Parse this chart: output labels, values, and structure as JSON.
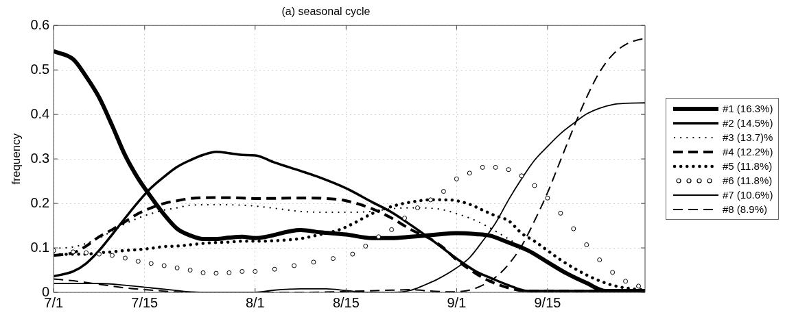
{
  "chart_data": {
    "type": "line",
    "title": "(a) seasonal cycle",
    "ylabel": "frequency",
    "xlim": [
      "--07-01",
      "--09-30"
    ],
    "ylim": [
      0,
      0.6
    ],
    "xticks": [
      {
        "value": "--07-01",
        "label": "7/1"
      },
      {
        "value": "--07-15",
        "label": "7/15"
      },
      {
        "value": "--08-01",
        "label": "8/1"
      },
      {
        "value": "--08-15",
        "label": "8/15"
      },
      {
        "value": "--09-01",
        "label": "9/1"
      },
      {
        "value": "--09-15",
        "label": "9/15"
      }
    ],
    "yticks": [
      0,
      0.1,
      0.2,
      0.3,
      0.4,
      0.5,
      0.6
    ],
    "grid": true,
    "legend": "right",
    "series": [
      {
        "name": "#1 (16.3%)",
        "color": "#000000",
        "type": "line",
        "line_style": "solid",
        "x": [
          "--07-01",
          "--07-04",
          "--07-06",
          "--07-08",
          "--07-10",
          "--07-12",
          "--07-14",
          "--07-16",
          "--07-18",
          "--07-20",
          "--07-22",
          "--07-24",
          "--07-26",
          "--07-28",
          "--07-30",
          "--08-01",
          "--08-08",
          "--08-11",
          "--08-15",
          "--08-19",
          "--08-22",
          "--08-25",
          "--08-29",
          "--09-01",
          "--09-04",
          "--09-06",
          "--09-09",
          "--09-12",
          "--09-15",
          "--09-18",
          "--09-21",
          "--09-24",
          "--09-27",
          "--09-30"
        ],
        "values": [
          0.542,
          0.524,
          0.485,
          0.438,
          0.375,
          0.308,
          0.256,
          0.214,
          0.175,
          0.143,
          0.128,
          0.12,
          0.12,
          0.123,
          0.125,
          0.122,
          0.14,
          0.135,
          0.13,
          0.122,
          0.122,
          0.125,
          0.13,
          0.133,
          0.131,
          0.128,
          0.112,
          0.094,
          0.068,
          0.042,
          0.021,
          0.003,
          0.003,
          0.003
        ]
      },
      {
        "name": "#2 (14.5%)",
        "color": "#000000",
        "type": "line",
        "line_style": "solid",
        "x": [
          "--07-01",
          "--07-04",
          "--07-06",
          "--07-08",
          "--07-10",
          "--07-12",
          "--07-14",
          "--07-16",
          "--07-18",
          "--07-20",
          "--07-22",
          "--07-24",
          "--07-26",
          "--07-28",
          "--07-30",
          "--08-01",
          "--08-04",
          "--08-08",
          "--08-11",
          "--08-15",
          "--08-19",
          "--08-22",
          "--08-25",
          "--08-28",
          "--08-30",
          "--09-01",
          "--09-04",
          "--09-06",
          "--09-09",
          "--09-12",
          "--09-30"
        ],
        "values": [
          0.036,
          0.047,
          0.065,
          0.094,
          0.13,
          0.167,
          0.203,
          0.235,
          0.26,
          0.282,
          0.297,
          0.309,
          0.316,
          0.313,
          0.309,
          0.308,
          0.292,
          0.273,
          0.258,
          0.234,
          0.203,
          0.18,
          0.151,
          0.12,
          0.098,
          0.076,
          0.047,
          0.034,
          0.016,
          0.003,
          0.003
        ]
      },
      {
        "name": "#3 (13.7)%",
        "color": "#000000",
        "type": "line",
        "line_style": "dotted",
        "x": [
          "--07-01",
          "--07-04",
          "--07-06",
          "--07-08",
          "--07-10",
          "--07-12",
          "--07-14",
          "--07-16",
          "--07-18",
          "--07-20",
          "--07-22",
          "--07-26",
          "--07-30",
          "--08-01",
          "--08-04",
          "--08-08",
          "--08-12",
          "--08-15",
          "--08-19",
          "--08-22",
          "--08-25",
          "--08-29",
          "--09-01",
          "--09-04",
          "--09-06",
          "--09-09",
          "--09-12",
          "--09-15",
          "--09-18",
          "--09-21",
          "--09-24",
          "--09-30"
        ],
        "values": [
          0.099,
          0.102,
          0.11,
          0.122,
          0.138,
          0.154,
          0.167,
          0.177,
          0.185,
          0.19,
          0.196,
          0.197,
          0.196,
          0.194,
          0.189,
          0.182,
          0.18,
          0.18,
          0.182,
          0.188,
          0.19,
          0.188,
          0.177,
          0.161,
          0.146,
          0.12,
          0.094,
          0.068,
          0.042,
          0.021,
          0.005,
          0.003
        ]
      },
      {
        "name": "#4 (12.2%)",
        "color": "#000000",
        "type": "line",
        "line_style": "dashed",
        "x": [
          "--07-01",
          "--07-04",
          "--07-06",
          "--07-08",
          "--07-10",
          "--07-12",
          "--07-14",
          "--07-16",
          "--07-18",
          "--07-20",
          "--07-22",
          "--07-26",
          "--07-30",
          "--08-01",
          "--08-08",
          "--08-12",
          "--08-15",
          "--08-19",
          "--08-22",
          "--08-25",
          "--08-28",
          "--08-30",
          "--09-01",
          "--09-04",
          "--09-06",
          "--09-09",
          "--09-12",
          "--09-30"
        ],
        "values": [
          0.083,
          0.089,
          0.104,
          0.125,
          0.141,
          0.159,
          0.177,
          0.19,
          0.2,
          0.206,
          0.211,
          0.213,
          0.212,
          0.211,
          0.212,
          0.211,
          0.206,
          0.188,
          0.167,
          0.141,
          0.12,
          0.1,
          0.073,
          0.042,
          0.026,
          0.01,
          0.003,
          0.003
        ]
      },
      {
        "name": "#5 (11.8%)",
        "color": "#000000",
        "type": "line",
        "line_style": "dotted",
        "x": [
          "--07-01",
          "--07-04",
          "--07-06",
          "--07-08",
          "--07-10",
          "--07-12",
          "--07-14",
          "--07-16",
          "--07-18",
          "--07-20",
          "--07-22",
          "--07-24",
          "--07-26",
          "--07-28",
          "--07-30",
          "--08-01",
          "--08-04",
          "--08-08",
          "--08-11",
          "--08-14",
          "--08-16",
          "--08-19",
          "--08-22",
          "--08-25",
          "--08-28",
          "--08-30",
          "--09-01",
          "--09-03",
          "--09-05",
          "--09-07",
          "--09-09",
          "--09-11",
          "--09-13",
          "--09-15",
          "--09-17",
          "--09-19",
          "--09-21",
          "--09-23",
          "--09-25",
          "--09-27",
          "--09-30"
        ],
        "values": [
          0.084,
          0.086,
          0.086,
          0.089,
          0.091,
          0.094,
          0.096,
          0.099,
          0.103,
          0.104,
          0.107,
          0.11,
          0.112,
          0.113,
          0.115,
          0.115,
          0.116,
          0.121,
          0.13,
          0.141,
          0.154,
          0.177,
          0.193,
          0.203,
          0.208,
          0.208,
          0.206,
          0.198,
          0.185,
          0.172,
          0.161,
          0.133,
          0.115,
          0.094,
          0.073,
          0.055,
          0.039,
          0.026,
          0.016,
          0.01,
          0.005
        ]
      },
      {
        "name": "#6 (11.8%)",
        "color": "#000000",
        "type": "scatter",
        "marker": "circle",
        "x": [
          "--07-01",
          "--07-04",
          "--07-06",
          "--07-08",
          "--07-10",
          "--07-12",
          "--07-14",
          "--07-16",
          "--07-18",
          "--07-20",
          "--07-22",
          "--07-24",
          "--07-26",
          "--07-28",
          "--07-30",
          "--08-01",
          "--08-04",
          "--08-07",
          "--08-10",
          "--08-13",
          "--08-16",
          "--08-18",
          "--08-20",
          "--08-22",
          "--08-24",
          "--08-26",
          "--08-28",
          "--08-30",
          "--09-01",
          "--09-03",
          "--09-05",
          "--09-07",
          "--09-09",
          "--09-11",
          "--09-13",
          "--09-15",
          "--09-17",
          "--09-19",
          "--09-21",
          "--09-23",
          "--09-25",
          "--09-27",
          "--09-29"
        ],
        "values": [
          0.094,
          0.091,
          0.089,
          0.086,
          0.083,
          0.077,
          0.07,
          0.065,
          0.06,
          0.055,
          0.05,
          0.044,
          0.043,
          0.044,
          0.047,
          0.047,
          0.052,
          0.06,
          0.068,
          0.076,
          0.086,
          0.104,
          0.125,
          0.141,
          0.167,
          0.19,
          0.208,
          0.227,
          0.255,
          0.268,
          0.281,
          0.281,
          0.276,
          0.262,
          0.24,
          0.212,
          0.178,
          0.143,
          0.107,
          0.073,
          0.045,
          0.025,
          0.014
        ]
      },
      {
        "name": "#7 (10.6%)",
        "color": "#000000",
        "type": "line",
        "line_style": "solid",
        "x": [
          "--07-01",
          "--07-08",
          "--07-12",
          "--07-16",
          "--07-20",
          "--07-22",
          "--07-26",
          "--07-30",
          "--08-01",
          "--08-04",
          "--08-08",
          "--08-12",
          "--08-15",
          "--08-18",
          "--08-22",
          "--08-25",
          "--08-27",
          "--08-29",
          "--09-01",
          "--09-03",
          "--09-05",
          "--09-07",
          "--09-09",
          "--09-11",
          "--09-13",
          "--09-15",
          "--09-17",
          "--09-19",
          "--09-21",
          "--09-23",
          "--09-25",
          "--09-27",
          "--09-30"
        ],
        "values": [
          0.02,
          0.02,
          0.016,
          0.01,
          0.004,
          0.001,
          0,
          0,
          0,
          0.005,
          0.008,
          0.008,
          0.004,
          0,
          0,
          0.005,
          0.016,
          0.029,
          0.055,
          0.078,
          0.115,
          0.156,
          0.208,
          0.255,
          0.297,
          0.328,
          0.357,
          0.38,
          0.401,
          0.414,
          0.422,
          0.425,
          0.426
        ]
      },
      {
        "name": "#8 (8.9%)",
        "color": "#000000",
        "type": "line",
        "line_style": "dashed",
        "x": [
          "--07-01",
          "--07-04",
          "--07-08",
          "--07-12",
          "--07-16",
          "--07-20",
          "--07-26",
          "--08-08",
          "--08-22",
          "--08-25",
          "--08-28",
          "--08-31",
          "--09-03",
          "--09-05",
          "--09-07",
          "--09-09",
          "--09-11",
          "--09-13",
          "--09-15",
          "--09-17",
          "--09-19",
          "--09-21",
          "--09-23",
          "--09-25",
          "--09-27",
          "--09-29",
          "--09-30"
        ],
        "values": [
          0.03,
          0.026,
          0.018,
          0.01,
          0.005,
          0.001,
          0,
          0,
          0.005,
          0.006,
          0.003,
          0.001,
          0.005,
          0.016,
          0.034,
          0.063,
          0.104,
          0.161,
          0.224,
          0.297,
          0.37,
          0.438,
          0.495,
          0.534,
          0.557,
          0.568,
          0.57
        ]
      }
    ]
  }
}
